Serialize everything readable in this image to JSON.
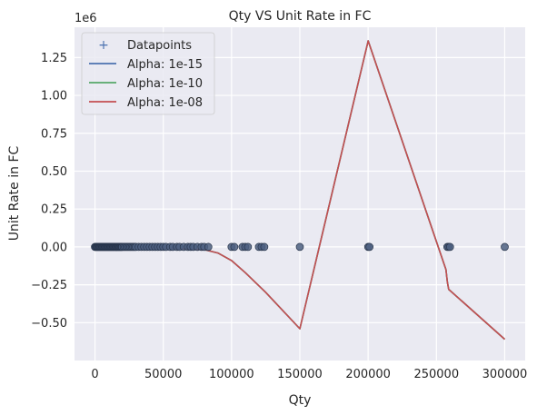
{
  "chart_data": {
    "type": "line",
    "title": "Qty VS Unit Rate in FC",
    "xlabel": "Qty",
    "ylabel": "Unit Rate in FC",
    "y_offset_text": "1e6",
    "xlim": [
      -15000,
      315000
    ],
    "ylim": [
      -750000,
      1450000
    ],
    "x_ticks": [
      0,
      50000,
      100000,
      150000,
      200000,
      250000,
      300000
    ],
    "x_tick_labels": [
      "0",
      "50000",
      "100000",
      "150000",
      "200000",
      "250000",
      "300000"
    ],
    "y_ticks": [
      -500000,
      -250000,
      0,
      250000,
      500000,
      750000,
      1000000,
      1250000
    ],
    "y_tick_labels": [
      "−0.50",
      "−0.25",
      "0.00",
      "0.25",
      "0.50",
      "0.75",
      "1.00",
      "1.25"
    ],
    "grid": true,
    "legend_position": "top-left",
    "scatter": {
      "name": "Datapoints",
      "color": "#4c5f80",
      "x": [
        0,
        500,
        1000,
        1500,
        2000,
        2500,
        3000,
        3500,
        4000,
        4500,
        5000,
        5500,
        6000,
        6500,
        7000,
        7500,
        8000,
        8500,
        9000,
        9500,
        10000,
        10500,
        11000,
        11500,
        12000,
        12500,
        13000,
        13500,
        14000,
        14500,
        15000,
        15500,
        16000,
        16500,
        17000,
        17500,
        18000,
        18500,
        19000,
        19500,
        20000,
        21000,
        22000,
        23000,
        24000,
        25000,
        26000,
        27000,
        28000,
        29000,
        30000,
        32000,
        34000,
        36000,
        38000,
        40000,
        42000,
        44000,
        46000,
        48000,
        50000,
        52000,
        55000,
        57000,
        60000,
        62000,
        65000,
        68000,
        70000,
        72000,
        75000,
        78000,
        80000,
        83000,
        100000,
        102000,
        108000,
        110000,
        112000,
        120000,
        122000,
        124000,
        150000,
        200000,
        201000,
        258000,
        259000,
        260000,
        300000
      ],
      "y": [
        0,
        0,
        0,
        0,
        0,
        0,
        0,
        0,
        0,
        0,
        0,
        0,
        0,
        0,
        0,
        0,
        0,
        0,
        0,
        0,
        0,
        0,
        0,
        0,
        0,
        0,
        0,
        0,
        0,
        0,
        0,
        0,
        0,
        0,
        0,
        0,
        0,
        0,
        0,
        0,
        0,
        0,
        0,
        0,
        0,
        0,
        0,
        0,
        0,
        0,
        0,
        0,
        0,
        0,
        0,
        0,
        0,
        0,
        0,
        0,
        0,
        0,
        0,
        0,
        0,
        0,
        0,
        0,
        0,
        0,
        0,
        0,
        0,
        0,
        0,
        0,
        0,
        0,
        0,
        0,
        0,
        0,
        0,
        0,
        0,
        0,
        0,
        0,
        0
      ]
    },
    "series": [
      {
        "name": "Alpha: 1e-15",
        "color": "#4c72b0",
        "x": [
          0,
          20000,
          40000,
          60000,
          80000,
          90000,
          100000,
          110000,
          125000,
          150000,
          200000,
          257000,
          258000,
          259000,
          300000
        ],
        "y": [
          0,
          -3000,
          -6000,
          -10000,
          -18000,
          -40000,
          -90000,
          -170000,
          -300000,
          -540000,
          1360000,
          -150000,
          -230000,
          -280000,
          -610000
        ]
      },
      {
        "name": "Alpha: 1e-10",
        "color": "#55a868",
        "x": [
          0,
          20000,
          40000,
          60000,
          80000,
          90000,
          100000,
          110000,
          125000,
          150000,
          200000,
          257000,
          258000,
          259000,
          300000
        ],
        "y": [
          0,
          -3000,
          -6000,
          -10000,
          -18000,
          -40000,
          -90000,
          -170000,
          -300000,
          -540000,
          1360000,
          -150000,
          -230000,
          -280000,
          -610000
        ]
      },
      {
        "name": "Alpha: 1e-08",
        "color": "#c44e52",
        "x": [
          0,
          20000,
          40000,
          60000,
          80000,
          90000,
          100000,
          110000,
          125000,
          150000,
          200000,
          257000,
          258000,
          259000,
          300000
        ],
        "y": [
          0,
          -3000,
          -6000,
          -10000,
          -18000,
          -40000,
          -90000,
          -170000,
          -300000,
          -540000,
          1360000,
          -150000,
          -230000,
          -280000,
          -610000
        ]
      }
    ]
  }
}
